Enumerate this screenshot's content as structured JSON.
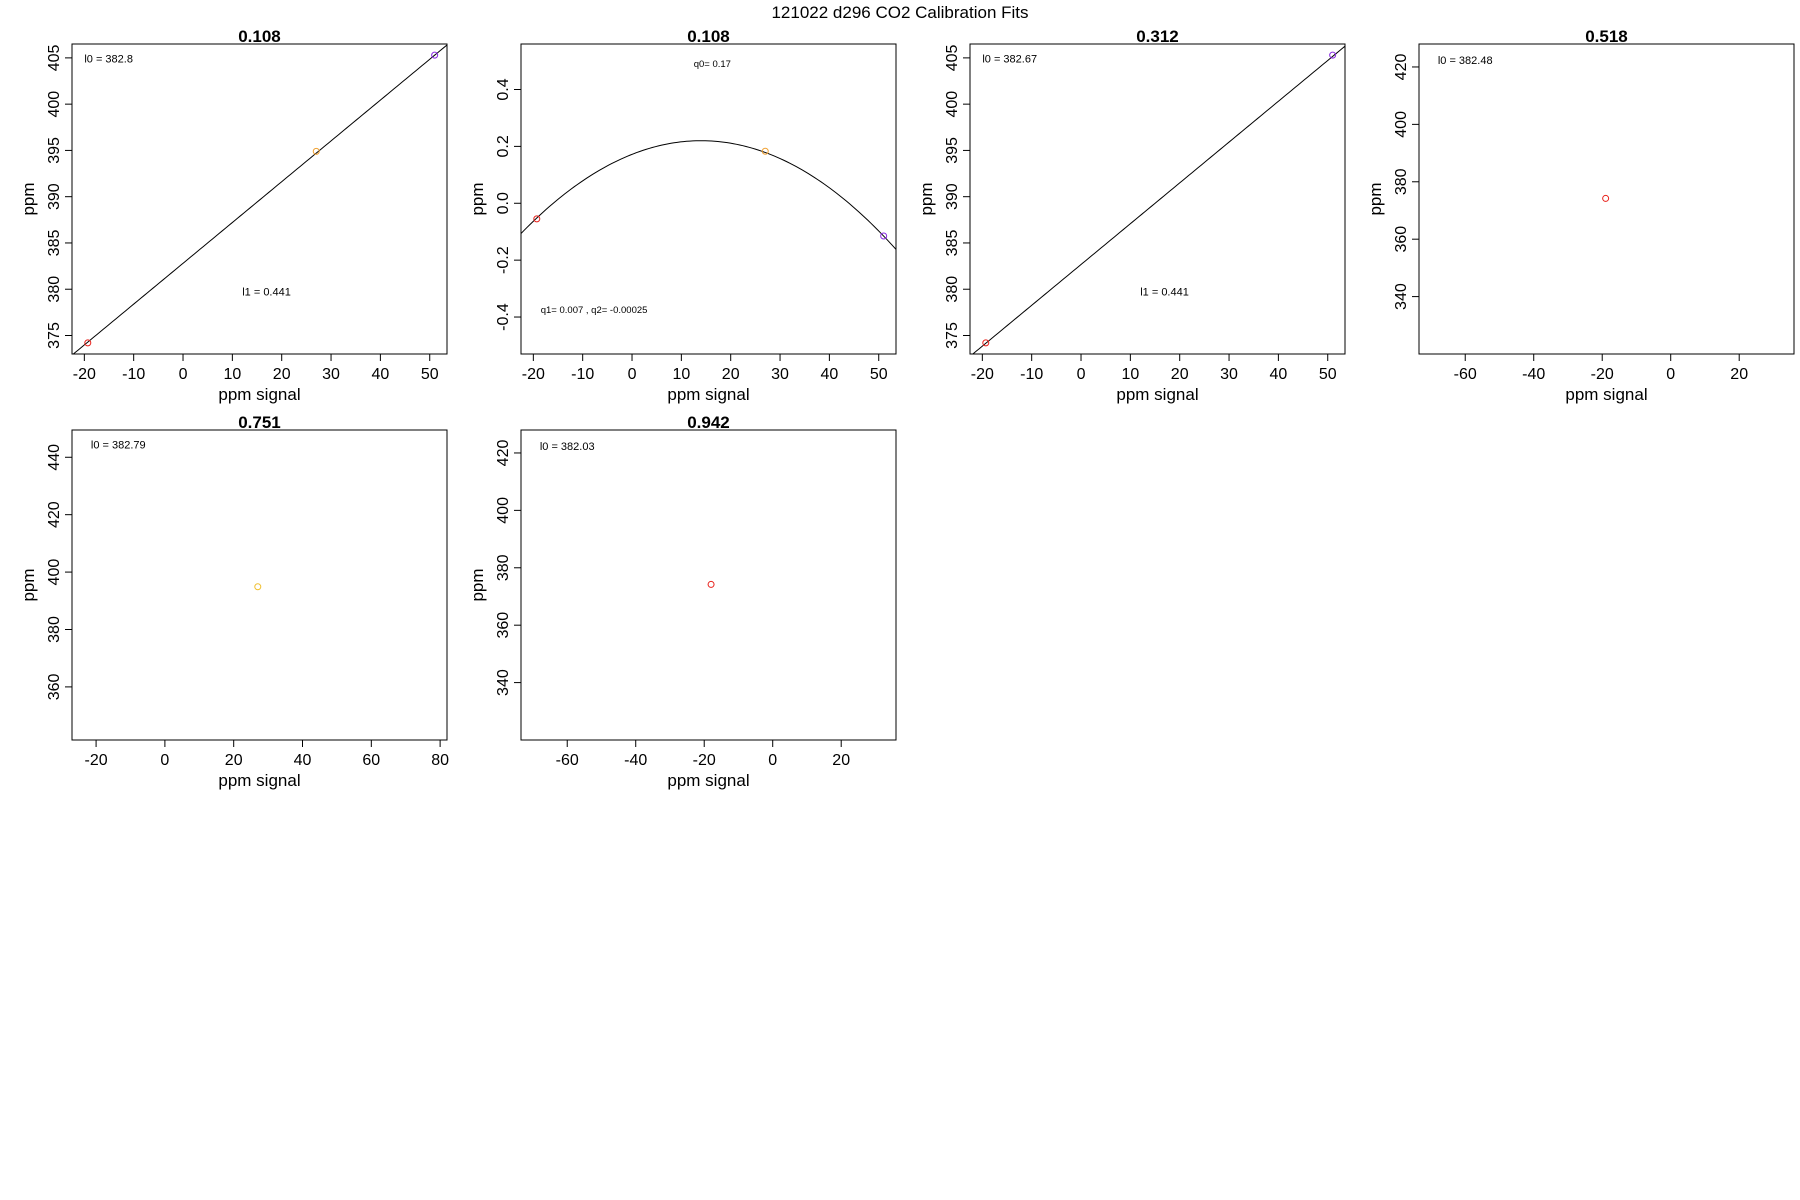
{
  "figure_title": "121022   d296   CO2 Calibration Fits",
  "chart_data": [
    {
      "type": "scatter",
      "title": "0.108",
      "xlabel": "ppm signal",
      "ylabel": "ppm",
      "xlim": [
        -22.5,
        53.5
      ],
      "ylim": [
        373.0,
        406.5
      ],
      "xticks": [
        -20,
        -10,
        0,
        10,
        20,
        30,
        40,
        50
      ],
      "yticks": [
        375,
        380,
        385,
        390,
        395,
        400,
        405
      ],
      "points": [
        {
          "x": -19.3,
          "y": 374.2,
          "color": "#e8201a"
        },
        {
          "x": 27.0,
          "y": 394.9,
          "color": "#f0a030"
        },
        {
          "x": 51.0,
          "y": 405.3,
          "color": "#8a2be2"
        }
      ],
      "fit": {
        "kind": "linear",
        "intercept": 382.8,
        "slope": 0.441
      },
      "annotations": [
        {
          "text": "l0 =  382.8",
          "x": -20,
          "y": 404.5
        },
        {
          "text": "l1 =  0.441",
          "x": 12,
          "y": 379.3
        }
      ]
    },
    {
      "type": "scatter",
      "title": "0.108",
      "xlabel": "ppm signal",
      "ylabel": "ppm",
      "xlim": [
        -22.5,
        53.5
      ],
      "ylim": [
        -0.53,
        0.56
      ],
      "xticks": [
        -20,
        -10,
        0,
        10,
        20,
        30,
        40,
        50
      ],
      "yticks": [
        -0.4,
        -0.2,
        0.0,
        0.2,
        0.4
      ],
      "ytick_labels": [
        "-0.4",
        "-0.2",
        "0.0",
        "0.2",
        "0.4"
      ],
      "points": [
        {
          "x": -19.3,
          "y": -0.055,
          "color": "#e8201a"
        },
        {
          "x": 27.0,
          "y": 0.183,
          "color": "#f0a030"
        },
        {
          "x": 51.0,
          "y": -0.115,
          "color": "#8a2be2"
        }
      ],
      "fit": {
        "kind": "quadratic",
        "vertex_x": 14.0,
        "vertex_y": 0.22,
        "curvature": -0.000245
      },
      "annotations": [
        {
          "text": "q0= 0.17",
          "x": 12.5,
          "y": 0.48
        },
        {
          "text": "q1= 0.007 , q2= -0.00025",
          "x": -18.5,
          "y": -0.385
        }
      ]
    },
    {
      "type": "scatter",
      "title": "0.312",
      "xlabel": "ppm signal",
      "ylabel": "ppm",
      "xlim": [
        -22.5,
        53.5
      ],
      "ylim": [
        373.0,
        406.5
      ],
      "xticks": [
        -20,
        -10,
        0,
        10,
        20,
        30,
        40,
        50
      ],
      "yticks": [
        375,
        380,
        385,
        390,
        395,
        400,
        405
      ],
      "points": [
        {
          "x": -19.3,
          "y": 374.2,
          "color": "#e8201a"
        },
        {
          "x": 51.0,
          "y": 405.3,
          "color": "#8a2be2"
        }
      ],
      "fit": {
        "kind": "linear",
        "intercept": 382.67,
        "slope": 0.441
      },
      "annotations": [
        {
          "text": "l0 =  382.67",
          "x": -20,
          "y": 404.5
        },
        {
          "text": "l1 =  0.441",
          "x": 12,
          "y": 379.3
        }
      ]
    },
    {
      "type": "scatter",
      "title": "0.518",
      "xlabel": "ppm signal",
      "ylabel": "ppm",
      "xlim": [
        -73.5,
        36.0
      ],
      "ylim": [
        320.0,
        428.0
      ],
      "xticks": [
        -60,
        -40,
        -20,
        0,
        20
      ],
      "yticks": [
        340,
        360,
        380,
        400,
        420
      ],
      "points": [
        {
          "x": -19.0,
          "y": 374.2,
          "color": "#e8201a"
        }
      ],
      "annotations": [
        {
          "text": "l0 =  382.48",
          "x": -68,
          "y": 421
        }
      ]
    },
    {
      "type": "scatter",
      "title": "0.751",
      "xlabel": "ppm signal",
      "ylabel": "ppm",
      "xlim": [
        -27.0,
        82.0
      ],
      "ylim": [
        341.5,
        449.5
      ],
      "xticks": [
        -20,
        0,
        20,
        40,
        60,
        80
      ],
      "yticks": [
        360,
        380,
        400,
        420,
        440
      ],
      "points": [
        {
          "x": 27.0,
          "y": 394.9,
          "color": "#f0c030"
        }
      ],
      "annotations": [
        {
          "text": "l0 =  382.79",
          "x": -21.5,
          "y": 443
        }
      ]
    },
    {
      "type": "scatter",
      "title": "0.942",
      "xlabel": "ppm signal",
      "ylabel": "ppm",
      "xlim": [
        -73.5,
        36.0
      ],
      "ylim": [
        320.0,
        428.0
      ],
      "xticks": [
        -60,
        -40,
        -20,
        0,
        20
      ],
      "yticks": [
        340,
        360,
        380,
        400,
        420
      ],
      "points": [
        {
          "x": -18.0,
          "y": 374.2,
          "color": "#e8201a"
        }
      ],
      "annotations": [
        {
          "text": "l0 =  382.03",
          "x": -68,
          "y": 421
        }
      ]
    }
  ]
}
